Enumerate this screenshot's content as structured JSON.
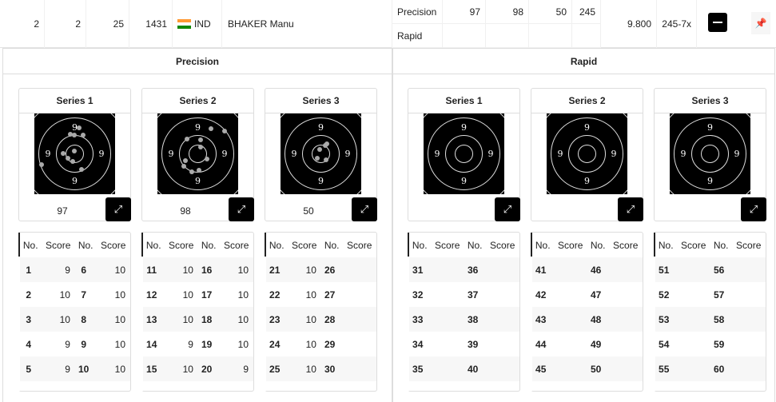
{
  "row": {
    "rank": "2",
    "bib": "2",
    "x_count": "25",
    "qual": "1431",
    "nation": "IND",
    "name": "BHAKER Manu",
    "avg": "9.800",
    "total_x": "245-7x",
    "stages": [
      {
        "name": "Precision",
        "s1": "97",
        "s2": "98",
        "s3": "50",
        "total": "245"
      },
      {
        "name": "Rapid",
        "s1": "",
        "s2": "",
        "s3": "",
        "total": ""
      }
    ],
    "collapse_icon": "minus-icon",
    "pin_icon": "pin-icon"
  },
  "panels": [
    {
      "title": "Precision",
      "series": [
        {
          "title": "Series 1",
          "score": "97",
          "shots": [
            [
              "1",
              "9"
            ],
            [
              "2",
              "10"
            ],
            [
              "3",
              "10"
            ],
            [
              "4",
              "9"
            ],
            [
              "5",
              "9"
            ],
            [
              "6",
              "10"
            ],
            [
              "7",
              "10"
            ],
            [
              "8",
              "10"
            ],
            [
              "9",
              "10"
            ],
            [
              "10",
              "10"
            ]
          ]
        },
        {
          "title": "Series 2",
          "score": "98",
          "shots": [
            [
              "11",
              "10"
            ],
            [
              "12",
              "10"
            ],
            [
              "13",
              "10"
            ],
            [
              "14",
              "9"
            ],
            [
              "15",
              "10"
            ],
            [
              "16",
              "10"
            ],
            [
              "17",
              "10"
            ],
            [
              "18",
              "10"
            ],
            [
              "19",
              "10"
            ],
            [
              "20",
              "9"
            ]
          ]
        },
        {
          "title": "Series 3",
          "score": "50",
          "shots": [
            [
              "21",
              "10"
            ],
            [
              "22",
              "10"
            ],
            [
              "23",
              "10"
            ],
            [
              "24",
              "10"
            ],
            [
              "25",
              "10"
            ],
            [
              "26",
              ""
            ],
            [
              "27",
              ""
            ],
            [
              "28",
              ""
            ],
            [
              "29",
              ""
            ],
            [
              "30",
              ""
            ]
          ]
        }
      ]
    },
    {
      "title": "Rapid",
      "series": [
        {
          "title": "Series 1",
          "score": "",
          "shots": [
            [
              "31",
              ""
            ],
            [
              "32",
              ""
            ],
            [
              "33",
              ""
            ],
            [
              "34",
              ""
            ],
            [
              "35",
              ""
            ],
            [
              "36",
              ""
            ],
            [
              "37",
              ""
            ],
            [
              "38",
              ""
            ],
            [
              "39",
              ""
            ],
            [
              "40",
              ""
            ]
          ]
        },
        {
          "title": "Series 2",
          "score": "",
          "shots": [
            [
              "41",
              ""
            ],
            [
              "42",
              ""
            ],
            [
              "43",
              ""
            ],
            [
              "44",
              ""
            ],
            [
              "45",
              ""
            ],
            [
              "46",
              ""
            ],
            [
              "47",
              ""
            ],
            [
              "48",
              ""
            ],
            [
              "49",
              ""
            ],
            [
              "50",
              ""
            ]
          ]
        },
        {
          "title": "Series 3",
          "score": "",
          "shots": [
            [
              "51",
              ""
            ],
            [
              "52",
              ""
            ],
            [
              "53",
              ""
            ],
            [
              "54",
              ""
            ],
            [
              "55",
              ""
            ],
            [
              "56",
              ""
            ],
            [
              "57",
              ""
            ],
            [
              "58",
              ""
            ],
            [
              "59",
              ""
            ],
            [
              "60",
              ""
            ]
          ]
        }
      ]
    }
  ],
  "table_headers": [
    "No.",
    "Score",
    "No.",
    "Score"
  ],
  "ring_label": "9",
  "expand_icon": "expand-icon"
}
